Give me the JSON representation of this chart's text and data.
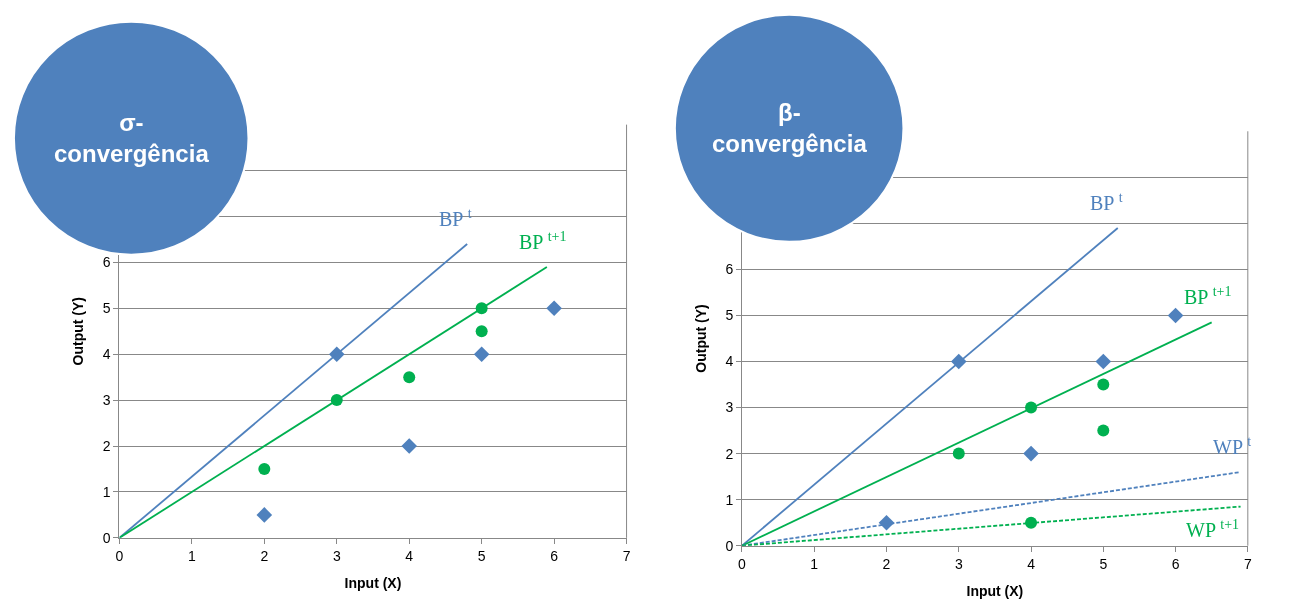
{
  "chart_data": [
    {
      "type": "scatter",
      "title": "σ-convergência",
      "xlabel": "Input (X)",
      "ylabel": "Output (Y)",
      "xlim": [
        0,
        7
      ],
      "xticks": [
        0,
        1,
        2,
        3,
        4,
        5,
        6,
        7
      ],
      "ylim": [
        0,
        9
      ],
      "yticks": [
        0,
        1,
        2,
        3,
        4,
        5,
        6,
        {
          "value": 7,
          "label": null
        },
        {
          "value": 8,
          "label": null
        },
        {
          "value": 9,
          "label": null
        }
      ],
      "grid": "y",
      "legend": false,
      "series": [
        {
          "marker": "diamond",
          "color": "#4f81bd",
          "x": [
            2,
            3,
            4,
            5,
            6
          ],
          "values": [
            0.5,
            4,
            2,
            4,
            5
          ]
        },
        {
          "marker": "circle",
          "color": "#00b050",
          "x": [
            2,
            3,
            4,
            5,
            5
          ],
          "values": [
            1.5,
            3,
            3.5,
            5,
            4.5
          ]
        },
        {
          "type": "line",
          "name": "BP $^{t}$",
          "color": "#4f81bd",
          "line_style": "solid",
          "x": [
            0,
            4.8
          ],
          "values": [
            0,
            6.4
          ]
        },
        {
          "type": "line",
          "name": "BP $^{t+1}$",
          "color": "#00b050",
          "line_style": "solid",
          "x": [
            0,
            5.9
          ],
          "values": [
            0,
            5.9
          ]
        }
      ]
    },
    {
      "type": "scatter",
      "title": "β-convergência",
      "xlabel": "Input (X)",
      "ylabel": "Output (Y)",
      "xlim": [
        0,
        7
      ],
      "xticks": [
        0,
        1,
        2,
        3,
        4,
        5,
        6,
        7
      ],
      "ylim": [
        0,
        9
      ],
      "yticks": [
        0,
        1,
        2,
        3,
        4,
        5,
        6,
        {
          "value": 7,
          "label": null
        },
        {
          "value": 8,
          "label": null
        },
        {
          "value": 9,
          "label": null
        }
      ],
      "grid": "y",
      "legend": false,
      "series": [
        {
          "marker": "diamond",
          "color": "#4f81bd",
          "x": [
            2,
            3,
            4,
            5,
            6
          ],
          "values": [
            0.5,
            4,
            2,
            4,
            5
          ]
        },
        {
          "marker": "circle",
          "color": "#00b050",
          "x": [
            3,
            4,
            5,
            5,
            4
          ],
          "values": [
            2,
            3,
            3.5,
            2.5,
            0.5
          ]
        },
        {
          "type": "line",
          "name": "BP $^{t}$",
          "color": "#4f81bd",
          "line_style": "solid",
          "x": [
            0,
            5.2
          ],
          "values": [
            0,
            6.9
          ]
        },
        {
          "type": "line",
          "name": "BP $^{t+1}$",
          "color": "#00b050",
          "line_style": "solid",
          "x": [
            0,
            6.5
          ],
          "values": [
            0,
            4.85
          ]
        },
        {
          "type": "line",
          "name": "WP $^{t}$",
          "color": "#4f81bd",
          "line_style": "dashed",
          "x": [
            0,
            6.9
          ],
          "values": [
            0,
            1.6
          ]
        },
        {
          "type": "line",
          "name": "WP $^{t+1}$",
          "color": "#00b050",
          "line_style": "dashed",
          "x": [
            0,
            6.9
          ],
          "values": [
            0,
            0.85
          ]
        }
      ]
    }
  ]
}
